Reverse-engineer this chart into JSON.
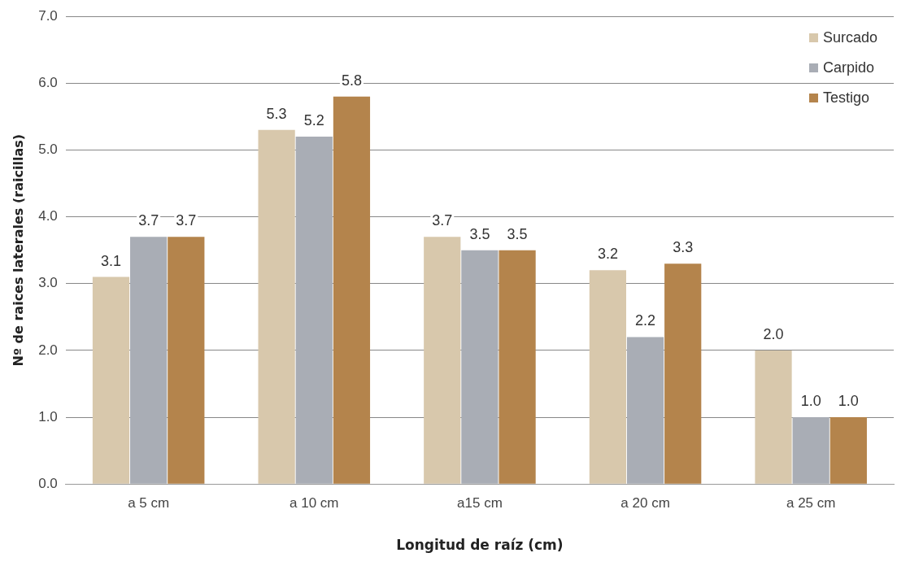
{
  "chart_data": {
    "type": "bar",
    "xlabel": "Longitud de raíz (cm)",
    "ylabel": "Nº de raices laterales (raicillas)",
    "categories": [
      "a 5 cm",
      "a 10 cm",
      "a15 cm",
      "a 20 cm",
      "a 25 cm"
    ],
    "series": [
      {
        "name": "Surcado",
        "color": "#d8c8ac",
        "values": [
          3.1,
          5.3,
          3.7,
          3.2,
          2.0
        ],
        "value_labels": [
          "3.1",
          "5.3",
          "3.7",
          "3.2",
          "2.0"
        ]
      },
      {
        "name": "Carpido",
        "color": "#a9adb5",
        "values": [
          3.7,
          5.2,
          3.5,
          2.2,
          1.0
        ],
        "value_labels": [
          "3.7",
          "5.2",
          "3.5",
          "2.2",
          "1.0"
        ]
      },
      {
        "name": "Testigo",
        "color": "#b4844c",
        "values": [
          3.7,
          5.8,
          3.5,
          3.3,
          1.0
        ],
        "value_labels": [
          "3.7",
          "5.8",
          "3.5",
          "3.3",
          "1.0"
        ]
      }
    ],
    "ylim": [
      0,
      7
    ],
    "yticks": [
      {
        "value": 0,
        "label": "0.0"
      },
      {
        "value": 1,
        "label": "1.0"
      },
      {
        "value": 2,
        "label": "2.0"
      },
      {
        "value": 3,
        "label": "3.0"
      },
      {
        "value": 4,
        "label": "4.0"
      },
      {
        "value": 5,
        "label": "5.0"
      },
      {
        "value": 6,
        "label": "6.0"
      },
      {
        "value": 7,
        "label": "7.0"
      }
    ],
    "grid": "y",
    "legend": "top right"
  }
}
